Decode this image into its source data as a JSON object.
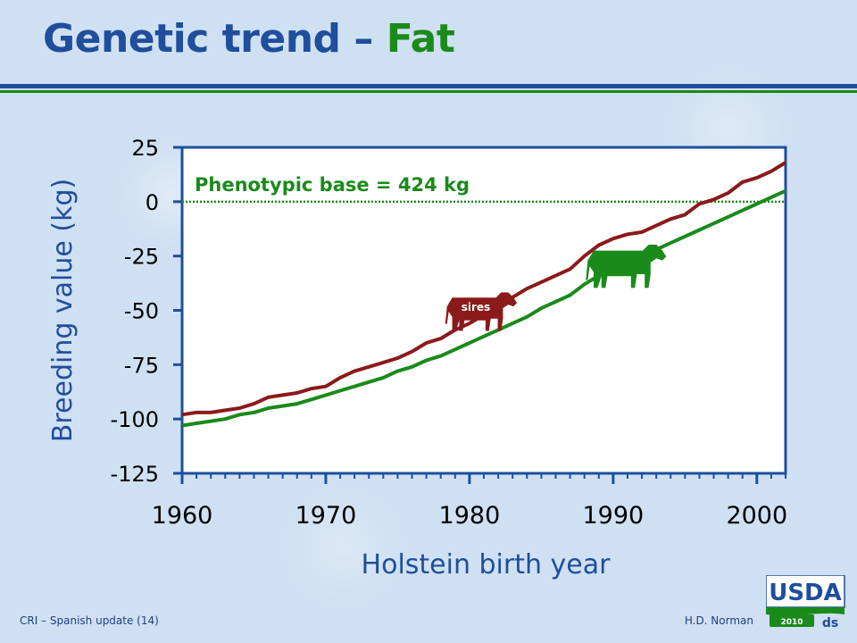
{
  "slide": {
    "title": "Genetic trend",
    "title_separator": " – ",
    "title_accent": "Fat",
    "footer_left": "CRI – Spanish update (14)",
    "footer_right": "H.D. Norman"
  },
  "logo": {
    "text": "USDA",
    "year": "2010"
  },
  "colors": {
    "title_blue": "#1f4e9c",
    "green": "#1a8a1a",
    "sires_red": "#8b1a1a",
    "axis_blue": "#1f4e9c"
  },
  "chart_data": {
    "type": "line",
    "xlabel": "Holstein birth year",
    "ylabel": "Breeding value (kg)",
    "xlim": [
      1960,
      2002
    ],
    "ylim": [
      -125,
      25
    ],
    "xticks": [
      1960,
      1970,
      1980,
      1990,
      2000
    ],
    "yticks": [
      25,
      0,
      -25,
      -50,
      -75,
      -100,
      -125
    ],
    "grid": false,
    "annotations": [
      {
        "text": "Phenotypic base = 424 kg",
        "y": 0,
        "style": "dotted reference line"
      },
      {
        "text": "sires",
        "kind": "cow-icon",
        "series": "sires"
      },
      {
        "text": "",
        "kind": "cow-icon",
        "series": "cows"
      }
    ],
    "series": [
      {
        "name": "sires",
        "color": "#8b1a1a",
        "x": [
          1960,
          1961,
          1962,
          1963,
          1964,
          1965,
          1966,
          1967,
          1968,
          1969,
          1970,
          1971,
          1972,
          1973,
          1974,
          1975,
          1976,
          1977,
          1978,
          1979,
          1980,
          1981,
          1982,
          1983,
          1984,
          1985,
          1986,
          1987,
          1988,
          1989,
          1990,
          1991,
          1992,
          1993,
          1994,
          1995,
          1996,
          1997,
          1998,
          1999,
          2000,
          2001,
          2002
        ],
        "y": [
          -98,
          -97,
          -97,
          -96,
          -95,
          -93,
          -90,
          -89,
          -88,
          -86,
          -85,
          -81,
          -78,
          -76,
          -74,
          -72,
          -69,
          -65,
          -63,
          -59,
          -56,
          -52,
          -48,
          -44,
          -40,
          -37,
          -34,
          -31,
          -25,
          -20,
          -17,
          -15,
          -14,
          -11,
          -8,
          -6,
          -1,
          1,
          4,
          9,
          11,
          14,
          18
        ]
      },
      {
        "name": "cows",
        "color": "#1a8a1a",
        "x": [
          1960,
          1961,
          1962,
          1963,
          1964,
          1965,
          1966,
          1967,
          1968,
          1969,
          1970,
          1971,
          1972,
          1973,
          1974,
          1975,
          1976,
          1977,
          1978,
          1979,
          1980,
          1981,
          1982,
          1983,
          1984,
          1985,
          1986,
          1987,
          1988,
          1989,
          1990,
          1991,
          1992,
          1993,
          1994,
          1995,
          1996,
          1997,
          1998,
          1999,
          2000,
          2001,
          2002
        ],
        "y": [
          -103,
          -102,
          -101,
          -100,
          -98,
          -97,
          -95,
          -94,
          -93,
          -91,
          -89,
          -87,
          -85,
          -83,
          -81,
          -78,
          -76,
          -73,
          -71,
          -68,
          -65,
          -62,
          -59,
          -56,
          -53,
          -49,
          -46,
          -43,
          -38,
          -34,
          -31,
          -28,
          -25,
          -22,
          -19,
          -16,
          -13,
          -10,
          -7,
          -4,
          -1,
          2,
          5
        ]
      }
    ]
  }
}
